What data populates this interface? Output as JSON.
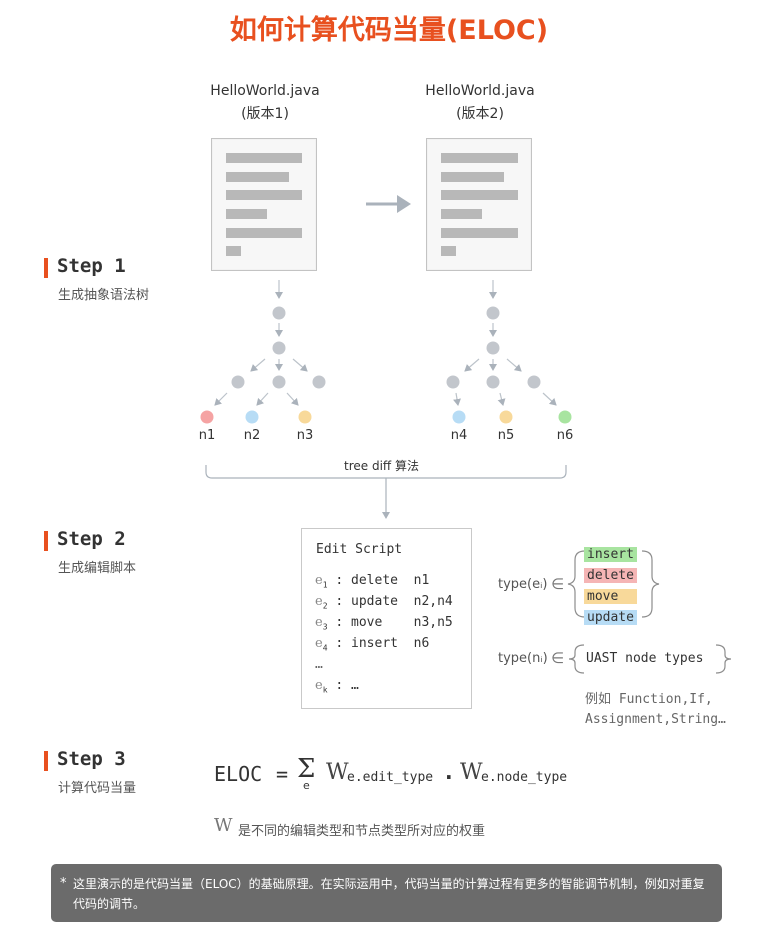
{
  "title": "如何计算代码当量(ELOC)",
  "files": [
    {
      "name": "HelloWorld.java",
      "version": "(版本1)"
    },
    {
      "name": "HelloWorld.java",
      "version": "(版本2)"
    }
  ],
  "steps": [
    {
      "title": "Step 1",
      "subtitle": "生成抽象语法树"
    },
    {
      "title": "Step 2",
      "subtitle": "生成编辑脚本"
    },
    {
      "title": "Step 3",
      "subtitle": "计算代码当量"
    }
  ],
  "tree_nodes": {
    "left": [
      "n1",
      "n2",
      "n3"
    ],
    "right": [
      "n4",
      "n5",
      "n6"
    ]
  },
  "tree_diff_label": "tree diff 算法",
  "edit_script": {
    "title": "Edit Script",
    "rows": [
      {
        "e": "e",
        "sub": "1",
        "op": " : delete  ",
        "nodes": "n1"
      },
      {
        "e": "e",
        "sub": "2",
        "op": " : update  ",
        "nodes": "n2,n4"
      },
      {
        "e": "e",
        "sub": "3",
        "op": " : move    ",
        "nodes": "n3,n5"
      },
      {
        "e": "e",
        "sub": "4",
        "op": " : insert  ",
        "nodes": "n6"
      }
    ],
    "ellipsis": "…",
    "last_e": "e",
    "last_sub": "k",
    "last_rest": " : …"
  },
  "types": {
    "edit_label": "type(eᵢ)",
    "node_label": "type(nᵢ)",
    "member": "∈",
    "edit_types": [
      "insert",
      "delete",
      "move",
      "update"
    ],
    "node_types": "UAST node types",
    "examples_line1": "例如 Function,If,",
    "examples_line2": "Assignment,String…"
  },
  "formula": {
    "lhs": "ELOC",
    "eq": "=",
    "sigma": "Σ",
    "sigma_sub": "e",
    "w1": "W",
    "w1_sub": "e.edit_type",
    "dot": ".",
    "w2": "W",
    "w2_sub": "e.node_type",
    "w_desc_symbol": "W",
    "w_desc": "是不同的编辑类型和节点类型所对应的权重"
  },
  "footer": {
    "star": "*",
    "text": "这里演示的是代码当量（ELOC）的基础原理。在实际运用中，代码当量的计算过程有更多的智能调节机制，例如对重复代码的调节。"
  },
  "colors": {
    "accent": "#e8501f",
    "node_gray": "#c2c6cc",
    "n1": "#f5a3a3",
    "n2_n4": "#b7dcf5",
    "n3_n5": "#f8d99a",
    "n6": "#a8e4a0",
    "insert": "#a8e4a0",
    "delete": "#f5b5b5",
    "move": "#f8d99a",
    "update": "#b7dcf5"
  }
}
